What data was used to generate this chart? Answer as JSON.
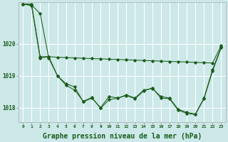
{
  "background_color": "#cce8e8",
  "grid_color": "#ffffff",
  "line_color": "#1a5c1a",
  "xlabel": "Graphe pression niveau de la mer (hPa)",
  "xlabel_fontsize": 7,
  "xtick_labels": [
    "0",
    "1",
    "2",
    "3",
    "4",
    "5",
    "6",
    "7",
    "8",
    "9",
    "10",
    "11",
    "12",
    "13",
    "14",
    "15",
    "16",
    "17",
    "18",
    "19",
    "20",
    "21",
    "22",
    "23"
  ],
  "ylim": [
    1017.55,
    1021.3
  ],
  "yticks": [
    1018,
    1019,
    1020
  ],
  "series_smooth": [
    1021.25,
    1021.25,
    1019.6,
    1019.6,
    1019.58,
    1019.57,
    1019.56,
    1019.55,
    1019.54,
    1019.53,
    1019.52,
    1019.51,
    1019.5,
    1019.49,
    1019.48,
    1019.47,
    1019.46,
    1019.45,
    1019.44,
    1019.43,
    1019.42,
    1019.41,
    1019.4,
    1019.95
  ],
  "series_mid": [
    1021.25,
    1021.2,
    1019.55,
    1019.6,
    1019.0,
    1018.75,
    1018.65,
    1018.18,
    1018.3,
    1018.0,
    1018.35,
    1018.3,
    1018.4,
    1018.3,
    1018.55,
    1018.6,
    1018.35,
    1018.3,
    1017.95,
    1017.85,
    1017.8,
    1018.3,
    1019.2,
    1019.9
  ],
  "series_jagged": [
    1021.25,
    1021.22,
    1020.95,
    1019.55,
    1019.0,
    1018.7,
    1018.55,
    1018.2,
    1018.32,
    1017.98,
    1018.25,
    1018.3,
    1018.38,
    1018.28,
    1018.52,
    1018.62,
    1018.3,
    1018.28,
    1017.92,
    1017.82,
    1017.78,
    1018.28,
    1019.15,
    1019.88
  ]
}
